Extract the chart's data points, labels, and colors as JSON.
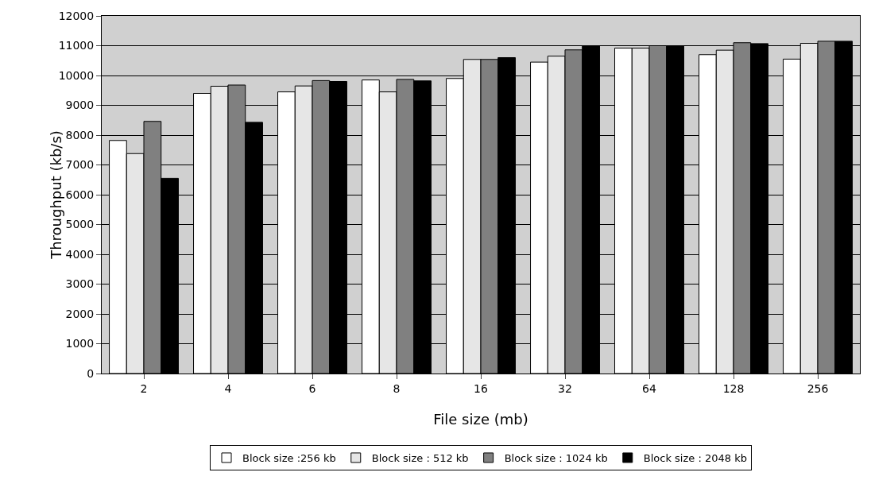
{
  "chart_data": {
    "type": "bar",
    "xlabel": "File size (mb)",
    "ylabel": "Throughput (kb/s)",
    "categories": [
      "2",
      "4",
      "6",
      "8",
      "16",
      "32",
      "64",
      "128",
      "256"
    ],
    "series": [
      {
        "name": "Block size :256 kb",
        "color": "#ffffff",
        "values": [
          7820,
          9400,
          9450,
          9850,
          9900,
          10450,
          10920,
          10700,
          10550
        ]
      },
      {
        "name": "Block size : 512 kb",
        "color": "#e6e6e6",
        "values": [
          7380,
          9640,
          9650,
          9450,
          10540,
          10650,
          10920,
          10850,
          11080
        ]
      },
      {
        "name": "Block size : 1024 kb",
        "color": "#808080",
        "values": [
          8460,
          9680,
          9830,
          9870,
          10540,
          10860,
          11000,
          11100,
          11150
        ]
      },
      {
        "name": "Block size : 2048 kb",
        "color": "#000000",
        "values": [
          6550,
          8430,
          9800,
          9820,
          10600,
          11000,
          11000,
          11070,
          11150
        ]
      }
    ],
    "ylim": [
      0,
      12000
    ],
    "yticks": [
      0,
      1000,
      2000,
      3000,
      4000,
      5000,
      6000,
      7000,
      8000,
      9000,
      10000,
      11000,
      12000
    ],
    "grid": "y",
    "legend": "bottom"
  }
}
